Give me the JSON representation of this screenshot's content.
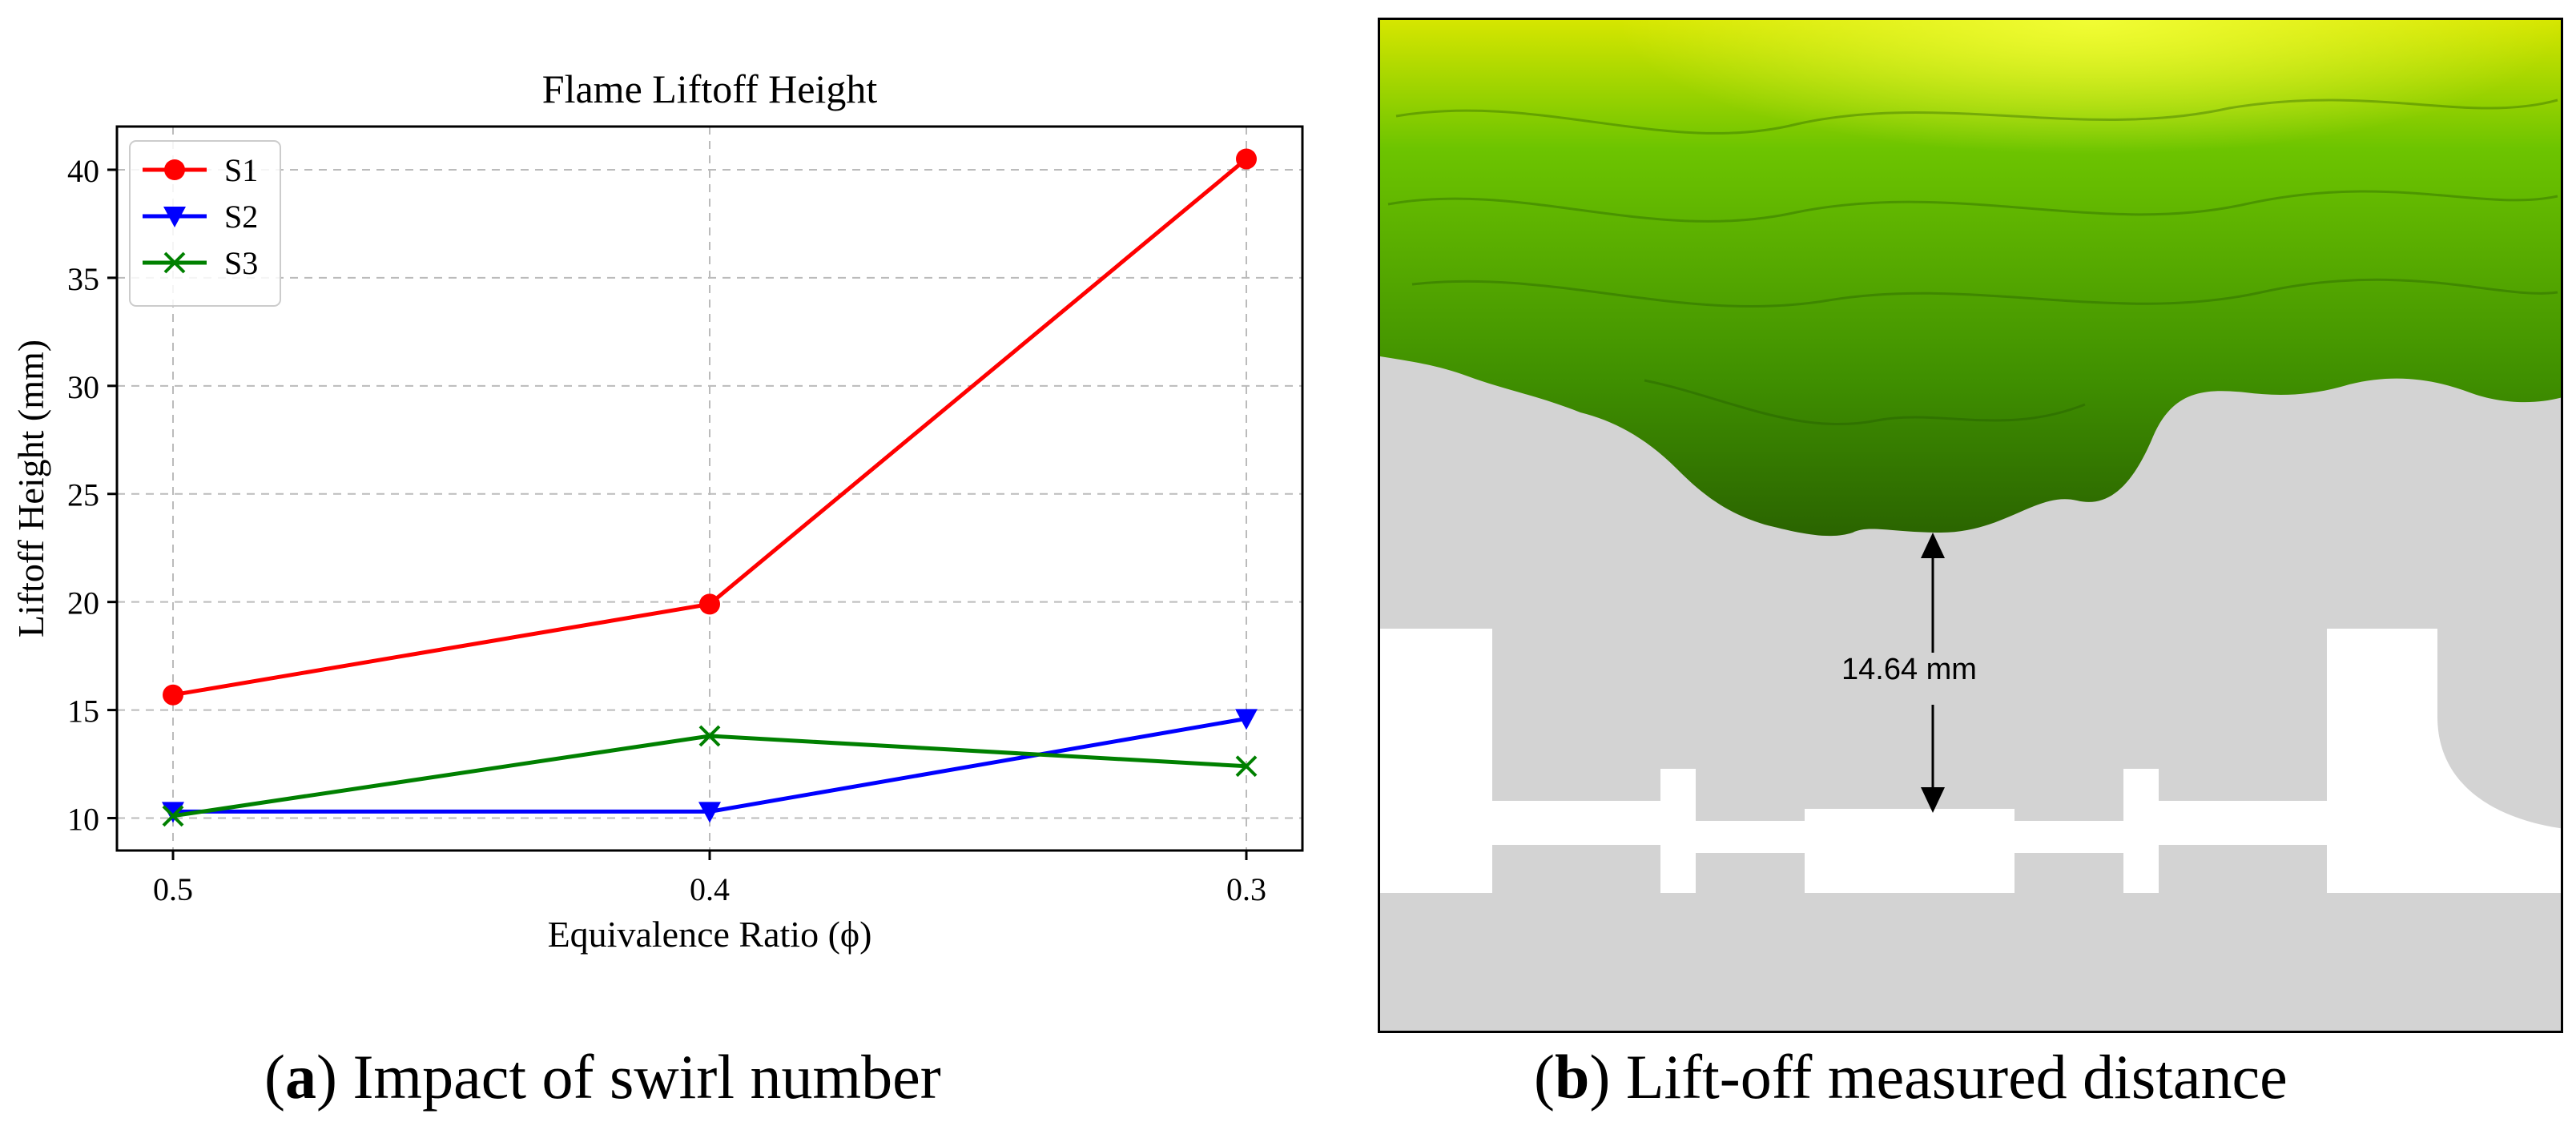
{
  "chart_data": {
    "type": "line",
    "title": "Flame Liftoff Height",
    "xlabel": "Equivalence Ratio (ϕ)",
    "ylabel": "Liftoff Height (mm)",
    "categories": [
      "0.5",
      "0.4",
      "0.3"
    ],
    "ylim": [
      8.5,
      42.0
    ],
    "yticks": [
      10,
      15,
      20,
      25,
      30,
      35,
      40
    ],
    "grid": true,
    "legend_position": "top-left",
    "series": [
      {
        "name": "S1",
        "values": [
          15.7,
          19.9,
          40.5
        ],
        "color": "#ff0000",
        "marker": "circle"
      },
      {
        "name": "S2",
        "values": [
          10.3,
          10.3,
          14.6
        ],
        "color": "#0000ff",
        "marker": "triangle-down"
      },
      {
        "name": "S3",
        "values": [
          10.1,
          13.8,
          12.4
        ],
        "color": "#008000",
        "marker": "x"
      }
    ]
  },
  "panel_b": {
    "measurement_label": "14.64 mm",
    "flame_color": "#4caf00",
    "background_color": "#d3d3d3"
  },
  "captions": {
    "a_letter": "a",
    "a_text": ") Impact of swirl number",
    "b_letter": "b",
    "b_text": ") Lift-off measured distance"
  }
}
